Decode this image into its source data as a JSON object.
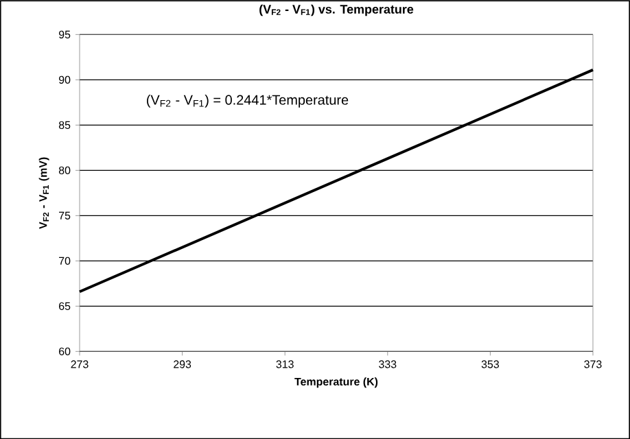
{
  "chart_data": {
    "type": "line",
    "title": "(V$_{F2}$ - V$_{F1}$) vs. Temperature",
    "xlabel": "Temperature (K)",
    "ylabel": "V$_{F2}$ - V$_{F1}$ (mV)",
    "annotations": [
      "(V$_{F2}$ - V$_{F1}$) = 0.2441*Temperature"
    ],
    "x": [
      273,
      373
    ],
    "series": [
      {
        "color": "#000000",
        "values": [
          66.6,
          91.1
        ]
      }
    ],
    "xlim": [
      273,
      373
    ],
    "ylim": [
      60,
      95
    ],
    "xticks": [
      273,
      293,
      313,
      333,
      353,
      373
    ],
    "yticks": [
      60,
      65,
      70,
      75,
      80,
      85,
      90,
      95
    ],
    "grid": "y",
    "marker": "none",
    "line_style": "solid"
  }
}
